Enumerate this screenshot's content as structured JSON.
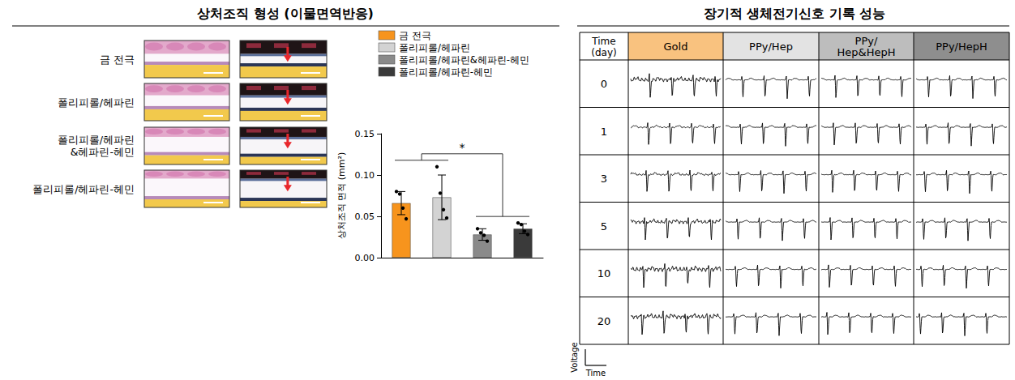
{
  "left_panel": {
    "title": "상처조직 형성 (이물면역반응)",
    "row_labels": [
      "금 전극",
      "폴리피롤/헤파린",
      "폴리피롤/헤파린&헤파린-헤민",
      "폴리피롤/헤파린-헤민"
    ]
  },
  "chart_data": {
    "type": "bar",
    "categories": [
      "금 전극",
      "폴리피롤/헤파린",
      "폴리피롤/헤파린&헤파린-헤민",
      "폴리피롤/헤파린-헤민"
    ],
    "values": [
      0.066,
      0.073,
      0.028,
      0.035
    ],
    "errors": [
      0.014,
      0.027,
      0.007,
      0.006
    ],
    "points": [
      [
        0.08,
        0.077,
        0.06,
        0.047
      ],
      [
        0.11,
        0.078,
        0.058,
        0.048
      ],
      [
        0.035,
        0.03,
        0.027,
        0.02
      ],
      [
        0.042,
        0.04,
        0.032,
        0.028
      ]
    ],
    "colors": [
      "#f7941d",
      "#d3d3d3",
      "#8a8a8a",
      "#3a3a3a"
    ],
    "ylabel": "상처조직 면적 (mm²)",
    "ylim": [
      0,
      0.15
    ],
    "yticks": [
      {
        "value": 0,
        "label": "0.00"
      },
      {
        "value": 0.05,
        "label": "0.05"
      },
      {
        "value": 0.1,
        "label": "0.10"
      },
      {
        "value": 0.15,
        "label": "0.15"
      }
    ],
    "tick_labels": "y",
    "legend": "top",
    "grid": false,
    "annotations": [
      "*"
    ]
  },
  "right_panel": {
    "title": "장기적 생체전기신호 기록 성능",
    "table": {
      "columns": [
        "Time (day)",
        "Gold",
        "PPy/Hep",
        "PPy/Hep&HepH",
        "PPy/HepH"
      ],
      "rows": [
        0,
        1,
        3,
        5,
        10,
        20
      ]
    },
    "scale_bar": {
      "y_label": "Voltage",
      "x_label": "Time"
    }
  }
}
